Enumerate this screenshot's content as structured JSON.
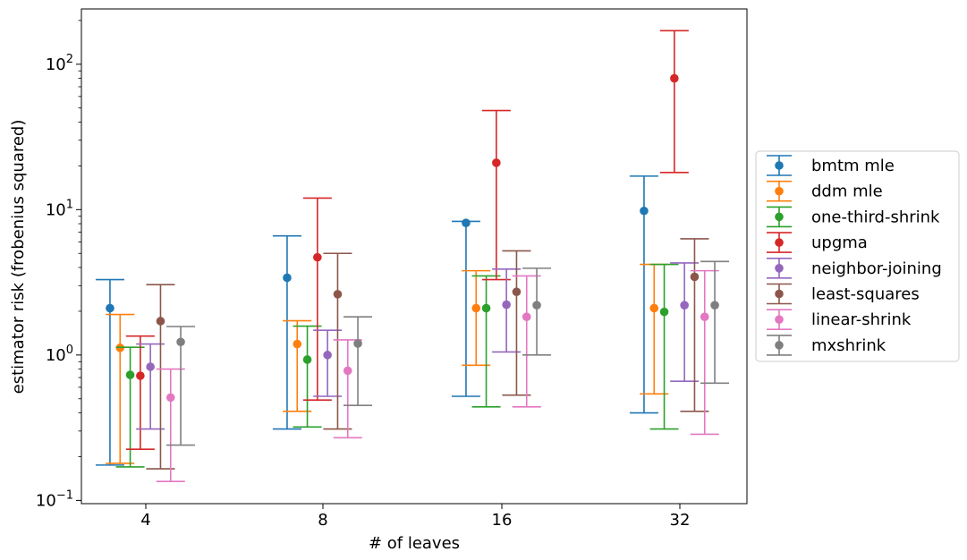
{
  "chart_data": {
    "type": "errorbar",
    "xlabel": "# of leaves",
    "ylabel": "estimator risk (frobenius squared)",
    "yscale": "log",
    "ylim": [
      0.095,
      240
    ],
    "y_major_ticks": [
      {
        "value": 0.1,
        "base": "10",
        "exp": "−1"
      },
      {
        "value": 1,
        "base": "10",
        "exp": "0"
      },
      {
        "value": 10,
        "base": "10",
        "exp": "1"
      },
      {
        "value": 100,
        "base": "10",
        "exp": "2"
      }
    ],
    "categories": [
      "4",
      "8",
      "16",
      "32"
    ],
    "legend_position": "center-right outside",
    "series": [
      {
        "name": "bmtm mle",
        "color": "#1f77b4",
        "points": [
          {
            "y": 2.1,
            "low": 0.175,
            "high": 3.3
          },
          {
            "y": 3.4,
            "low": 0.31,
            "high": 6.6
          },
          {
            "y": 8.1,
            "low": 0.52,
            "high": 8.3
          },
          {
            "y": 9.8,
            "low": 0.4,
            "high": 17
          }
        ]
      },
      {
        "name": "ddm mle",
        "color": "#ff7f0e",
        "points": [
          {
            "y": 1.12,
            "low": 0.18,
            "high": 1.9
          },
          {
            "y": 1.19,
            "low": 0.41,
            "high": 1.72
          },
          {
            "y": 2.1,
            "low": 0.85,
            "high": 3.8
          },
          {
            "y": 2.1,
            "low": 0.54,
            "high": 4.2
          }
        ]
      },
      {
        "name": "one-third-shrink",
        "color": "#2ca02c",
        "points": [
          {
            "y": 0.73,
            "low": 0.17,
            "high": 1.13
          },
          {
            "y": 0.93,
            "low": 0.32,
            "high": 1.58
          },
          {
            "y": 2.1,
            "low": 0.44,
            "high": 3.5
          },
          {
            "y": 1.98,
            "low": 0.31,
            "high": 4.2
          }
        ]
      },
      {
        "name": "upgma",
        "color": "#d62728",
        "points": [
          {
            "y": 0.72,
            "low": 0.225,
            "high": 1.35
          },
          {
            "y": 4.7,
            "low": 0.49,
            "high": 12
          },
          {
            "y": 21,
            "low": 3.3,
            "high": 48
          },
          {
            "y": 80,
            "low": 18,
            "high": 170
          }
        ]
      },
      {
        "name": "neighbor-joining",
        "color": "#9467bd",
        "points": [
          {
            "y": 0.83,
            "low": 0.31,
            "high": 1.19
          },
          {
            "y": 1.0,
            "low": 0.52,
            "high": 1.48
          },
          {
            "y": 2.22,
            "low": 1.05,
            "high": 3.9
          },
          {
            "y": 2.2,
            "low": 0.66,
            "high": 4.3
          }
        ]
      },
      {
        "name": "least-squares",
        "color": "#8c564b",
        "points": [
          {
            "y": 1.71,
            "low": 0.165,
            "high": 3.05
          },
          {
            "y": 2.62,
            "low": 0.31,
            "high": 5.0
          },
          {
            "y": 2.72,
            "low": 0.53,
            "high": 5.2
          },
          {
            "y": 3.45,
            "low": 0.41,
            "high": 6.3
          }
        ]
      },
      {
        "name": "linear-shrink",
        "color": "#e377c2",
        "points": [
          {
            "y": 0.51,
            "low": 0.135,
            "high": 0.8
          },
          {
            "y": 0.78,
            "low": 0.27,
            "high": 1.27
          },
          {
            "y": 1.83,
            "low": 0.44,
            "high": 3.5
          },
          {
            "y": 1.83,
            "low": 0.285,
            "high": 3.8
          }
        ]
      },
      {
        "name": "mxshrink",
        "color": "#7f7f7f",
        "points": [
          {
            "y": 1.23,
            "low": 0.24,
            "high": 1.57
          },
          {
            "y": 1.2,
            "low": 0.45,
            "high": 1.83
          },
          {
            "y": 2.2,
            "low": 1.0,
            "high": 3.95
          },
          {
            "y": 2.2,
            "low": 0.64,
            "high": 4.4
          }
        ]
      }
    ]
  }
}
